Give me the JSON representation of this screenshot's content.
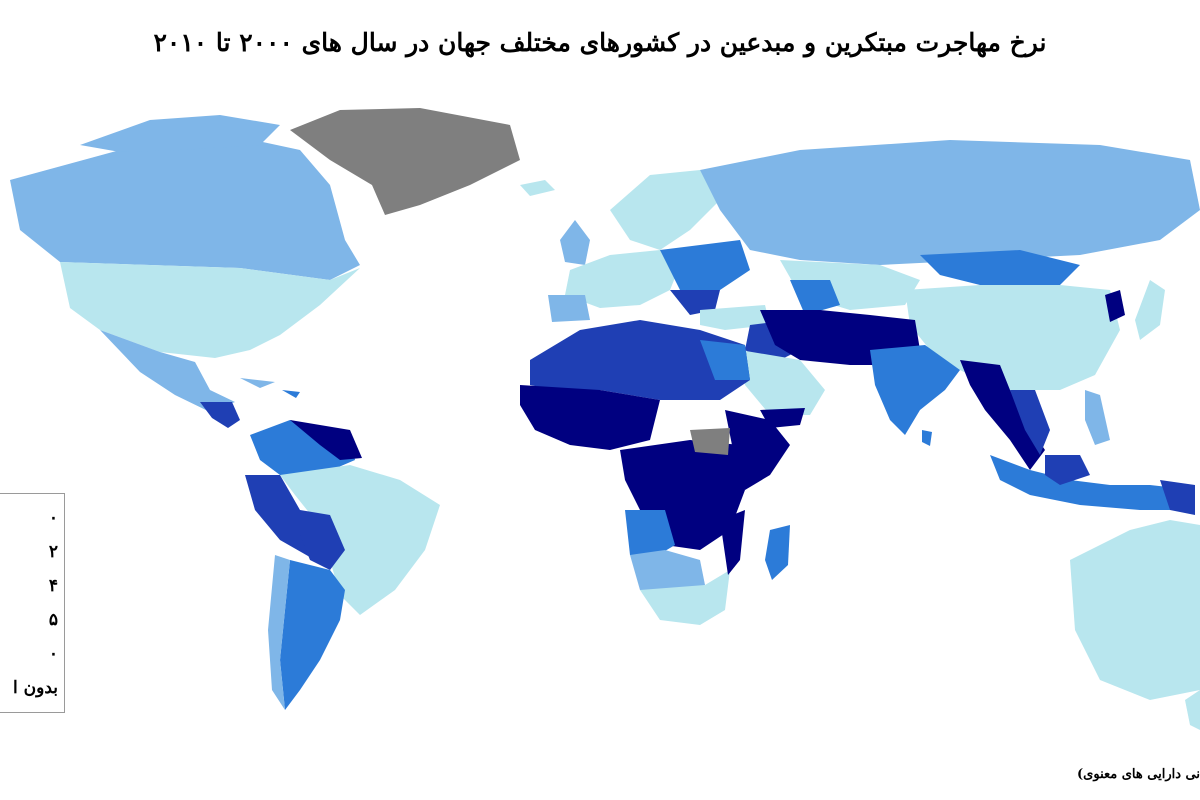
{
  "title": "نرخ مهاجرت مبتکرین و مبدعین در کشورهای مختلف جهان در سال های ۲۰۰۰ تا ۲۰۱۰",
  "legend": {
    "rows": [
      {
        "label": "۰",
        "color": "#000080"
      },
      {
        "label": "۲",
        "color": "#1f3fb4"
      },
      {
        "label": "۴",
        "color": "#2c7bd8"
      },
      {
        "label": "۵",
        "color": "#7fb6e8"
      },
      {
        "label": "۰",
        "color": "#b8e6ee"
      },
      {
        "label": "بدون ا",
        "color": "#7f7f7f"
      }
    ]
  },
  "source": "جهانی دارایی های معنوی)",
  "colors": {
    "darkest": "#000080",
    "dark": "#1f3fb4",
    "medium": "#2c7bd8",
    "light": "#7fb6e8",
    "lightest": "#b8e6ee",
    "nodata": "#7f7f7f"
  }
}
